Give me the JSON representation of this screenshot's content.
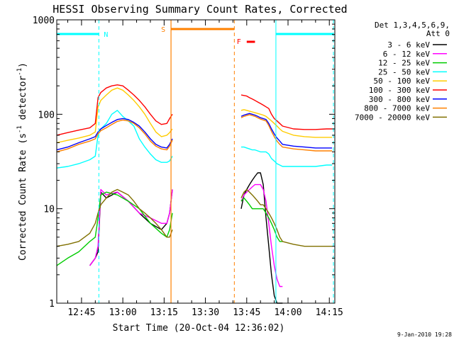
{
  "chart_data": {
    "type": "line",
    "title": "HESSI Observing Summary Count Rates, Corrected",
    "xlabel": "Start Time (20-Oct-04 12:36:02)",
    "ylabel": "Corrected Count Rate (s⁻¹ detector⁻¹)",
    "ylabel_base": "Corrected Count Rate (s",
    "ylabel_mid": " detector",
    "ylabel_end": ")",
    "ylabel_sup": "-1",
    "x_unit": "minutes since 12:36:02",
    "xlim": [
      0,
      101
    ],
    "ylim": [
      1,
      1000
    ],
    "yscale": "log",
    "x_ticks": [
      {
        "label": "12:45",
        "value": 9
      },
      {
        "label": "13:00",
        "value": 24
      },
      {
        "label": "13:15",
        "value": 39
      },
      {
        "label": "13:30",
        "value": 54
      },
      {
        "label": "13:45",
        "value": 69
      },
      {
        "label": "14:00",
        "value": 84
      },
      {
        "label": "14:15",
        "value": 99
      }
    ],
    "y_ticks": [
      {
        "label": "1",
        "value": 1
      },
      {
        "label": "10",
        "value": 10
      },
      {
        "label": "100",
        "value": 100
      },
      {
        "label": "1000",
        "value": 1000
      }
    ],
    "legend": {
      "header1": "Det 1,3,4,5,6,9,",
      "header2": "Att 0",
      "placement": "right"
    },
    "series": [
      {
        "name": "3 - 6 keV",
        "color": "#000000",
        "x": [
          0,
          6,
          10,
          12,
          14,
          15,
          16,
          18,
          22,
          26,
          30,
          34,
          38,
          40,
          41,
          42,
          43,
          44,
          66,
          67,
          68,
          69,
          70,
          71,
          72,
          73,
          74,
          75,
          76,
          77,
          78,
          79,
          80,
          81,
          82
        ],
        "y": [
          null,
          null,
          null,
          2.5,
          3,
          3.5,
          15,
          13,
          15,
          12,
          9,
          7,
          6,
          7,
          9,
          16,
          null,
          null,
          null,
          10,
          14,
          16,
          18,
          20,
          22,
          24,
          24,
          18,
          8,
          4,
          2,
          1.2,
          1,
          1,
          1
        ]
      },
      {
        "name": "6 - 12 keV",
        "color": "#ff00ff",
        "x": [
          0,
          6,
          10,
          12,
          14,
          15,
          16,
          18,
          22,
          26,
          30,
          34,
          38,
          40,
          41,
          42,
          43,
          44,
          66,
          67,
          68,
          69,
          70,
          71,
          72,
          73,
          74,
          75,
          76,
          77,
          78,
          79,
          80,
          81,
          82
        ],
        "y": [
          null,
          null,
          null,
          2.5,
          3,
          4,
          16,
          14,
          15,
          12,
          9,
          8,
          7,
          7,
          9,
          16,
          null,
          null,
          null,
          12,
          14,
          15,
          16,
          17,
          18,
          18,
          18,
          16,
          12,
          7,
          4,
          2.5,
          1.8,
          1.5,
          1.5
        ]
      },
      {
        "name": "12 - 25 keV",
        "color": "#00cc00",
        "x": [
          0,
          4,
          8,
          12,
          14,
          15,
          16,
          18,
          22,
          26,
          30,
          34,
          38,
          40,
          41,
          42,
          43,
          44,
          66,
          67,
          68,
          69,
          70,
          71,
          72,
          73,
          74,
          75,
          76,
          77,
          78,
          79,
          80,
          81,
          82
        ],
        "y": [
          2.5,
          3,
          3.5,
          4.5,
          5,
          8,
          14,
          15,
          14,
          12,
          10,
          7,
          5.5,
          5,
          6,
          9,
          null,
          null,
          null,
          12,
          13,
          12,
          11,
          10,
          10,
          10,
          10,
          10,
          9,
          8,
          7,
          6,
          5,
          4.5,
          4.5
        ]
      },
      {
        "name": "25 - 50 keV",
        "color": "#00ffff",
        "x": [
          0,
          4,
          8,
          12,
          14,
          15,
          16,
          18,
          20,
          22,
          24,
          26,
          28,
          30,
          32,
          34,
          36,
          38,
          40,
          41,
          42,
          43,
          44,
          66,
          67,
          68,
          69,
          70,
          71,
          72,
          73,
          74,
          75,
          76,
          77,
          78,
          79,
          80,
          81,
          82,
          86,
          90,
          94,
          98,
          100
        ],
        "y": [
          27,
          28,
          30,
          33,
          36,
          60,
          70,
          80,
          100,
          110,
          95,
          85,
          75,
          55,
          45,
          38,
          33,
          31,
          31,
          32,
          36,
          null,
          null,
          null,
          45,
          45,
          44,
          43,
          42,
          42,
          41,
          40,
          40,
          40,
          38,
          34,
          32,
          30,
          29,
          28,
          28,
          28,
          28,
          29,
          29
        ]
      },
      {
        "name": "50 - 100 keV",
        "color": "#ffcc00",
        "x": [
          0,
          4,
          8,
          12,
          14,
          15,
          16,
          18,
          20,
          22,
          24,
          26,
          28,
          30,
          32,
          34,
          36,
          38,
          40,
          41,
          42,
          43,
          44,
          66,
          67,
          68,
          69,
          70,
          71,
          72,
          73,
          74,
          75,
          76,
          77,
          78,
          79,
          80,
          81,
          82,
          86,
          90,
          94,
          98,
          100
        ],
        "y": [
          50,
          53,
          56,
          60,
          65,
          120,
          140,
          160,
          180,
          190,
          180,
          160,
          140,
          120,
          100,
          80,
          65,
          58,
          60,
          64,
          70,
          null,
          null,
          null,
          110,
          112,
          110,
          108,
          106,
          104,
          102,
          100,
          98,
          95,
          90,
          85,
          80,
          75,
          70,
          66,
          60,
          58,
          57,
          57,
          57
        ]
      },
      {
        "name": "100 - 300 keV",
        "color": "#ff0000",
        "x": [
          0,
          4,
          8,
          12,
          14,
          15,
          16,
          18,
          20,
          22,
          24,
          26,
          28,
          30,
          32,
          34,
          36,
          38,
          40,
          41,
          42,
          43,
          44,
          66,
          67,
          68,
          69,
          70,
          71,
          72,
          73,
          74,
          75,
          76,
          77,
          78,
          79,
          80,
          81,
          82,
          86,
          90,
          94,
          98,
          100
        ],
        "y": [
          60,
          64,
          68,
          72,
          80,
          150,
          170,
          190,
          200,
          205,
          200,
          180,
          160,
          140,
          120,
          100,
          85,
          78,
          80,
          90,
          100,
          null,
          null,
          null,
          160,
          158,
          156,
          150,
          145,
          140,
          135,
          130,
          125,
          120,
          115,
          100,
          90,
          85,
          80,
          75,
          70,
          69,
          69,
          70,
          70
        ]
      },
      {
        "name": "300 - 800 keV",
        "color": "#0000ff",
        "x": [
          0,
          4,
          8,
          12,
          14,
          15,
          16,
          18,
          20,
          22,
          24,
          26,
          28,
          30,
          32,
          34,
          36,
          38,
          40,
          41,
          42,
          43,
          44,
          66,
          67,
          68,
          69,
          70,
          71,
          72,
          73,
          74,
          75,
          76,
          77,
          78,
          79,
          80,
          81,
          82,
          86,
          90,
          94,
          98,
          100
        ],
        "y": [
          42,
          45,
          50,
          55,
          58,
          65,
          70,
          76,
          82,
          88,
          90,
          88,
          82,
          75,
          65,
          55,
          48,
          45,
          44,
          48,
          55,
          null,
          null,
          null,
          95,
          98,
          100,
          102,
          100,
          98,
          95,
          92,
          90,
          88,
          80,
          70,
          62,
          56,
          52,
          48,
          46,
          45,
          44,
          44,
          44
        ]
      },
      {
        "name": "800 - 7000 keV",
        "color": "#ff8000",
        "x": [
          0,
          4,
          8,
          12,
          14,
          15,
          16,
          18,
          20,
          22,
          24,
          26,
          28,
          30,
          32,
          34,
          36,
          38,
          40,
          41,
          42,
          43,
          44,
          66,
          67,
          68,
          69,
          70,
          71,
          72,
          73,
          74,
          75,
          76,
          77,
          78,
          79,
          80,
          81,
          82,
          86,
          90,
          94,
          98,
          100
        ],
        "y": [
          40,
          43,
          48,
          52,
          55,
          62,
          67,
          72,
          78,
          84,
          87,
          85,
          80,
          72,
          62,
          52,
          46,
          43,
          42,
          46,
          53,
          null,
          null,
          null,
          92,
          95,
          97,
          99,
          97,
          95,
          92,
          89,
          87,
          85,
          76,
          66,
          58,
          52,
          48,
          45,
          43,
          42,
          41,
          41,
          41
        ]
      },
      {
        "name": "7000 - 20000 keV",
        "color": "#807000",
        "x": [
          0,
          4,
          8,
          12,
          14,
          15,
          16,
          18,
          20,
          22,
          24,
          26,
          28,
          30,
          32,
          34,
          36,
          38,
          40,
          41,
          42,
          43,
          44,
          66,
          67,
          68,
          69,
          70,
          71,
          72,
          73,
          74,
          75,
          76,
          77,
          78,
          79,
          80,
          81,
          82,
          86,
          90,
          94,
          98,
          100
        ],
        "y": [
          4,
          4.2,
          4.5,
          5.5,
          7,
          9,
          11,
          13,
          15,
          16,
          15,
          14,
          12,
          10,
          9,
          8,
          7,
          6,
          5,
          5,
          6,
          null,
          null,
          null,
          13,
          15,
          16,
          15,
          14,
          13,
          12,
          11,
          11,
          10,
          9,
          8,
          7,
          6,
          5,
          4.5,
          4.2,
          4,
          4,
          4,
          4
        ]
      }
    ],
    "markers": {
      "N": {
        "label": "N",
        "color": "#00ffff",
        "segments": [
          [
            0,
            15.3
          ],
          [
            79.6,
            100.5
          ]
        ],
        "dashed_x": 15.3,
        "solid_x": 79.6,
        "dashed_end_x": 100.5
      },
      "S": {
        "label": "S",
        "color": "#ff8000",
        "segments": [
          [
            41.5,
            64.5
          ]
        ],
        "solid_x": 41.5,
        "dashed_x": 64.5
      },
      "F": {
        "label": "F",
        "color": "#ff0000",
        "segments": [
          [
            69,
            72
          ]
        ]
      }
    }
  },
  "footer": {
    "timestamp": "9-Jan-2010 19:28"
  }
}
